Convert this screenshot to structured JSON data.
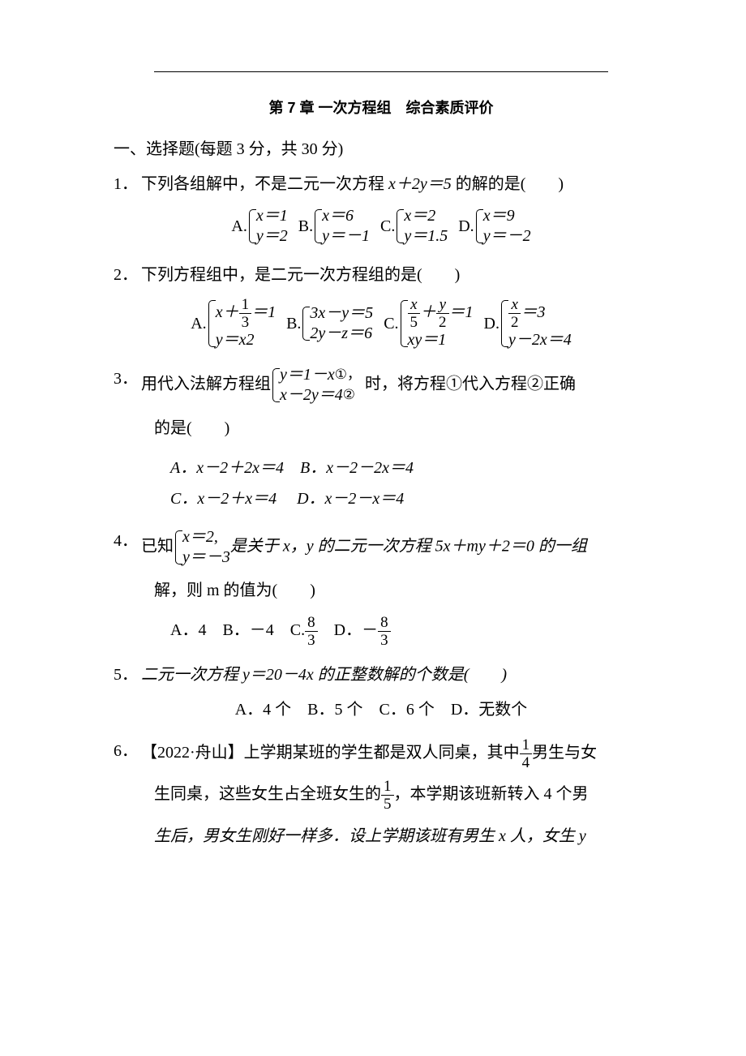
{
  "title": "第 7 章 一次方程组　综合素质评价",
  "section1": "一、选择题(每题 3 分，共 30 分)",
  "q1": {
    "num": "1．",
    "text_a": "下列各组解中，不是二元一次方程 ",
    "eq": "x＋2y＝5",
    "text_b": " 的解的是(　　)",
    "A": {
      "l": "A.",
      "r1": "x＝1",
      "r2": "y＝2"
    },
    "B": {
      "l": "B.",
      "r1": "x＝6",
      "r2": "y＝－1"
    },
    "C": {
      "l": "C.",
      "r1": "x＝2",
      "r2": "y＝1.5"
    },
    "D": {
      "l": "D.",
      "r1": "x＝9",
      "r2": "y＝－2"
    }
  },
  "q2": {
    "num": "2．",
    "text": "下列方程组中，是二元一次方程组的是(　　)",
    "A": {
      "l": "A."
    },
    "B": {
      "l": "B.",
      "r1": "3x－y＝5",
      "r2": "2y－z＝6"
    },
    "C": {
      "l": "C."
    },
    "D": {
      "l": "D."
    }
  },
  "q3": {
    "num": "3．",
    "text_a": "用代入法解方程组",
    "r1_a": "y＝1－x",
    "c1": "①，",
    "r2_a": "x－2y＝4",
    "c2": "②",
    "text_b": " 时，将方程①代入方程②正确",
    "line2": "的是(　　)",
    "A": "A．x－2＋2x＝4",
    "B": "B．x－2－2x＝4",
    "C": "C．x－2＋x＝4",
    "D": "D．x－2－x＝4"
  },
  "q4": {
    "num": "4．",
    "text_a": "已知",
    "r1": "x＝2,",
    "r2": "y＝－3",
    "text_b": "是关于 x，y 的二元一次方程 5x＋my＋2＝0 的一组",
    "line2": "解，则 m 的值为(　　)",
    "A": "A．4",
    "B": "B．－4",
    "C_l": "C.",
    "D_l": "D．－",
    "frac_n": "8",
    "frac_d": "3"
  },
  "q5": {
    "num": "5．",
    "text": "二元一次方程 y＝20－4x 的正整数解的个数是(　　)",
    "A": "A．4 个",
    "B": "B．5 个",
    "C": "C．6 个",
    "D": "D．无数个"
  },
  "q6": {
    "num": "6．",
    "tag": "【2022·舟山】",
    "text_a": "上学期某班的学生都是双人同桌，其中",
    "f1_n": "1",
    "f1_d": "4",
    "text_b": "男生与女",
    "line2_a": "生同桌，这些女生占全班女生的",
    "f2_n": "1",
    "f2_d": "5",
    "line2_b": "，本学期该班新转入 4 个男",
    "line3": "生后，男女生刚好一样多．设上学期该班有男生 x 人，女生 y"
  }
}
